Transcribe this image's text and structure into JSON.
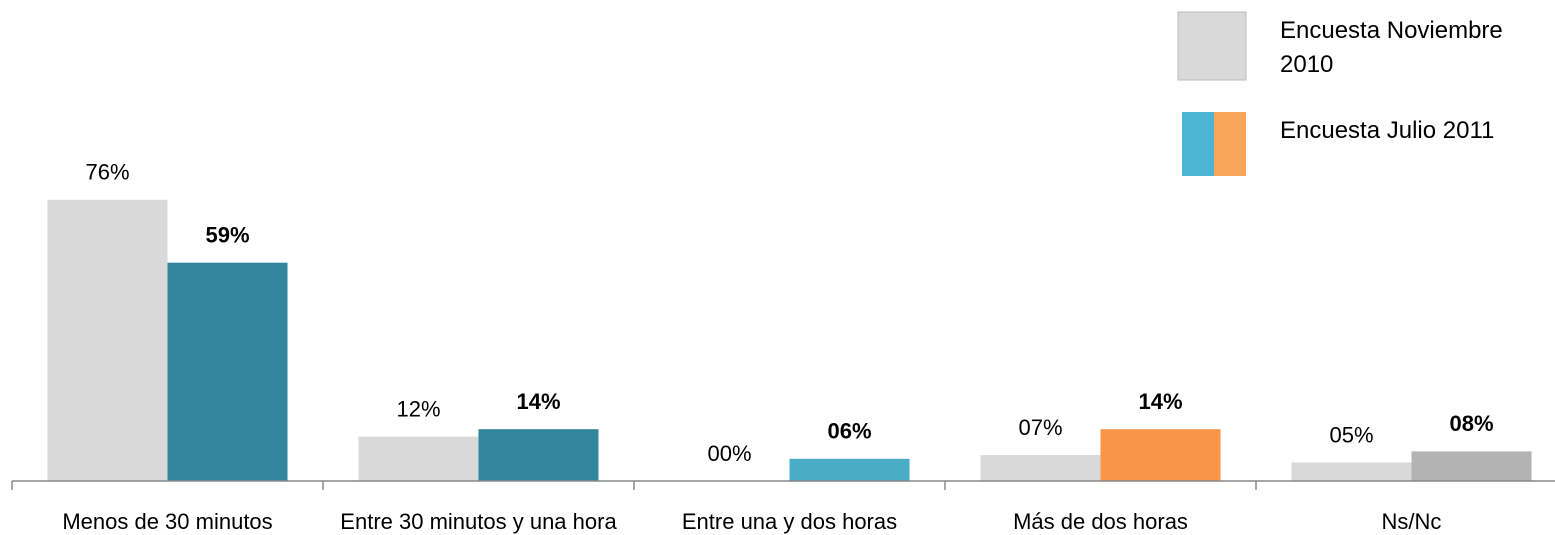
{
  "chart_data": {
    "type": "bar",
    "categories": [
      "Menos de 30 minutos",
      "Entre 30 minutos y una hora",
      "Entre una y dos horas",
      "Más de dos horas",
      "Ns/Nc"
    ],
    "series": [
      {
        "name": "Encuesta Noviembre 2010",
        "color": "#d9d9d9",
        "values": [
          76,
          12,
          0,
          7,
          5
        ],
        "value_labels": [
          "76%",
          "12%",
          "00%",
          "07%",
          "05%"
        ]
      },
      {
        "name": "Encuesta Julio 2011",
        "colors": [
          "#31859c",
          "#31859c",
          "#4bacc6",
          "#f79646",
          "#b3b3b3"
        ],
        "legend_colors": [
          "#4bb5d4",
          "#f9a65a"
        ],
        "values": [
          59,
          14,
          6,
          14,
          8
        ],
        "value_labels": [
          "59%",
          "14%",
          "06%",
          "14%",
          "08%"
        ]
      }
    ],
    "legend": "top-right"
  }
}
